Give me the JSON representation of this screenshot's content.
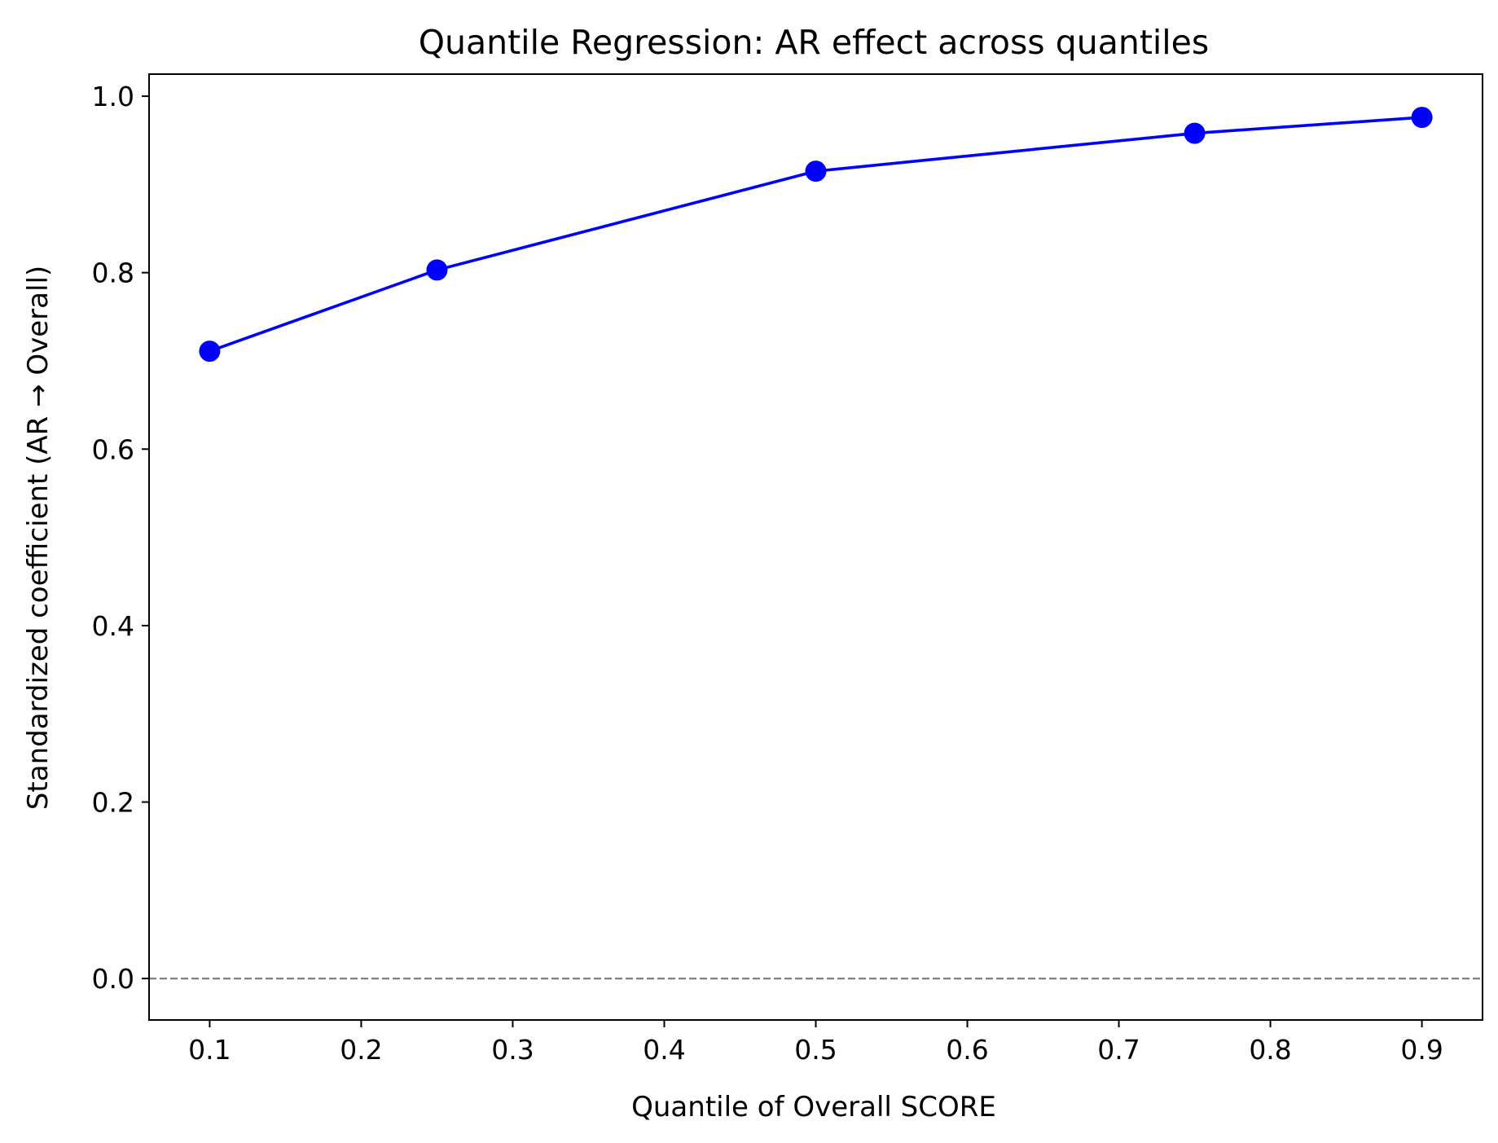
{
  "chart_data": {
    "type": "line",
    "title": "Quantile Regression: AR effect across quantiles",
    "xlabel": "Quantile of Overall SCORE",
    "ylabel": "Standardized coefficient (AR → Overall)",
    "xlim": [
      0.06,
      0.94
    ],
    "ylim": [
      -0.047,
      1.025
    ],
    "xticks": [
      0.1,
      0.2,
      0.3,
      0.4,
      0.5,
      0.6,
      0.7,
      0.8,
      0.9
    ],
    "xtick_labels": [
      "0.1",
      "0.2",
      "0.3",
      "0.4",
      "0.5",
      "0.6",
      "0.7",
      "0.8",
      "0.9"
    ],
    "yticks": [
      0.0,
      0.2,
      0.4,
      0.6,
      0.8,
      1.0
    ],
    "ytick_labels": [
      "0.0",
      "0.2",
      "0.4",
      "0.6",
      "0.8",
      "1.0"
    ],
    "grid": false,
    "reference_line": {
      "y": 0.0,
      "style": "dashed",
      "color": "#808080"
    },
    "series": [
      {
        "x": [
          0.1,
          0.25,
          0.5,
          0.75,
          0.9
        ],
        "y": [
          0.711,
          0.803,
          0.915,
          0.958,
          0.976
        ],
        "color": "#0000ff",
        "marker": "circle"
      }
    ]
  }
}
